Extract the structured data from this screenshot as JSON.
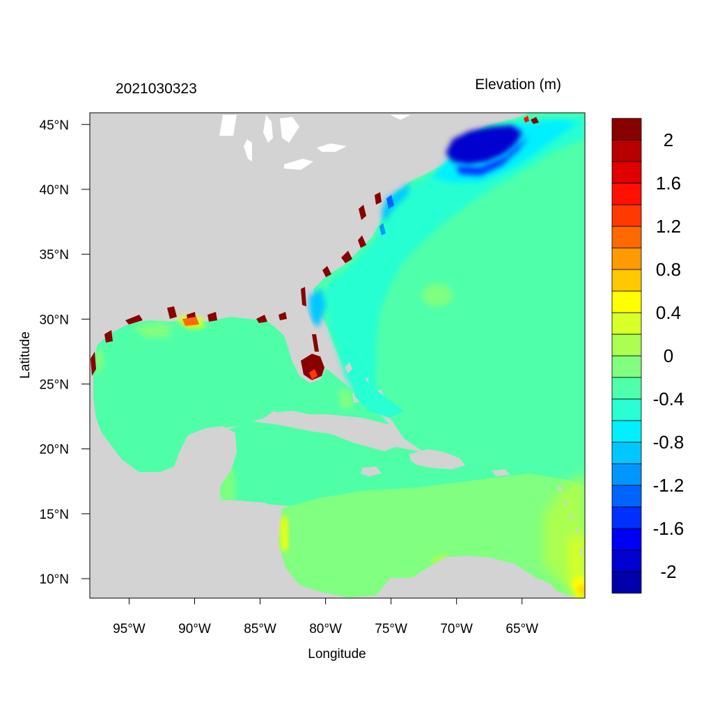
{
  "header": {
    "timestamp": "2021030323",
    "variable_title": "Elevation (m)"
  },
  "axes": {
    "xlabel": "Longitude",
    "ylabel": "Latitude",
    "x_ticks": [
      {
        "value": -95,
        "label": "95°W"
      },
      {
        "value": -90,
        "label": "90°W"
      },
      {
        "value": -85,
        "label": "85°W"
      },
      {
        "value": -80,
        "label": "80°W"
      },
      {
        "value": -75,
        "label": "75°W"
      },
      {
        "value": -70,
        "label": "70°W"
      },
      {
        "value": -65,
        "label": "65°W"
      }
    ],
    "y_ticks": [
      {
        "value": 45,
        "label": "45°N"
      },
      {
        "value": 40,
        "label": "40°N"
      },
      {
        "value": 35,
        "label": "35°N"
      },
      {
        "value": 30,
        "label": "30°N"
      },
      {
        "value": 25,
        "label": "25°N"
      },
      {
        "value": 20,
        "label": "20°N"
      },
      {
        "value": 15,
        "label": "15°N"
      },
      {
        "value": 10,
        "label": "10°N"
      }
    ],
    "lon_range": [
      -98.0,
      -60.2
    ],
    "lat_range": [
      8.5,
      45.9
    ]
  },
  "colorbar": {
    "levels": [
      {
        "color": "#0000aa"
      },
      {
        "color": "#0000d0"
      },
      {
        "color": "#0000f5"
      },
      {
        "color": "#0030ff"
      },
      {
        "color": "#0064ff"
      },
      {
        "color": "#0096ff"
      },
      {
        "color": "#00c8ff"
      },
      {
        "color": "#00f0ff"
      },
      {
        "color": "#28ffd2"
      },
      {
        "color": "#50ffaa"
      },
      {
        "color": "#80ff80"
      },
      {
        "color": "#aaff50"
      },
      {
        "color": "#d8ff28"
      },
      {
        "color": "#ffff00"
      },
      {
        "color": "#ffc800"
      },
      {
        "color": "#ff9a00"
      },
      {
        "color": "#ff6a00"
      },
      {
        "color": "#ff3a00"
      },
      {
        "color": "#ff1000"
      },
      {
        "color": "#e00000"
      },
      {
        "color": "#b80000"
      },
      {
        "color": "#880000"
      }
    ],
    "labels": [
      {
        "boundary": 1,
        "text": "-2"
      },
      {
        "boundary": 3,
        "text": "-1.6"
      },
      {
        "boundary": 5,
        "text": "-1.2"
      },
      {
        "boundary": 7,
        "text": "-0.8"
      },
      {
        "boundary": 9,
        "text": "-0.4"
      },
      {
        "boundary": 11,
        "text": "0"
      },
      {
        "boundary": 13,
        "text": "0.4"
      },
      {
        "boundary": 15,
        "text": "0.8"
      },
      {
        "boundary": 17,
        "text": "1.2"
      },
      {
        "boundary": 19,
        "text": "1.6"
      },
      {
        "boundary": 21,
        "text": "2"
      }
    ]
  },
  "colors": {
    "land": "#d3d3d3",
    "water_base": "#50ffaa",
    "gulf": "#4fffa8",
    "caribbean_south": "#80ff80",
    "atlantic_coastal": "#28ffd2",
    "lakes": "#ffffff"
  }
}
